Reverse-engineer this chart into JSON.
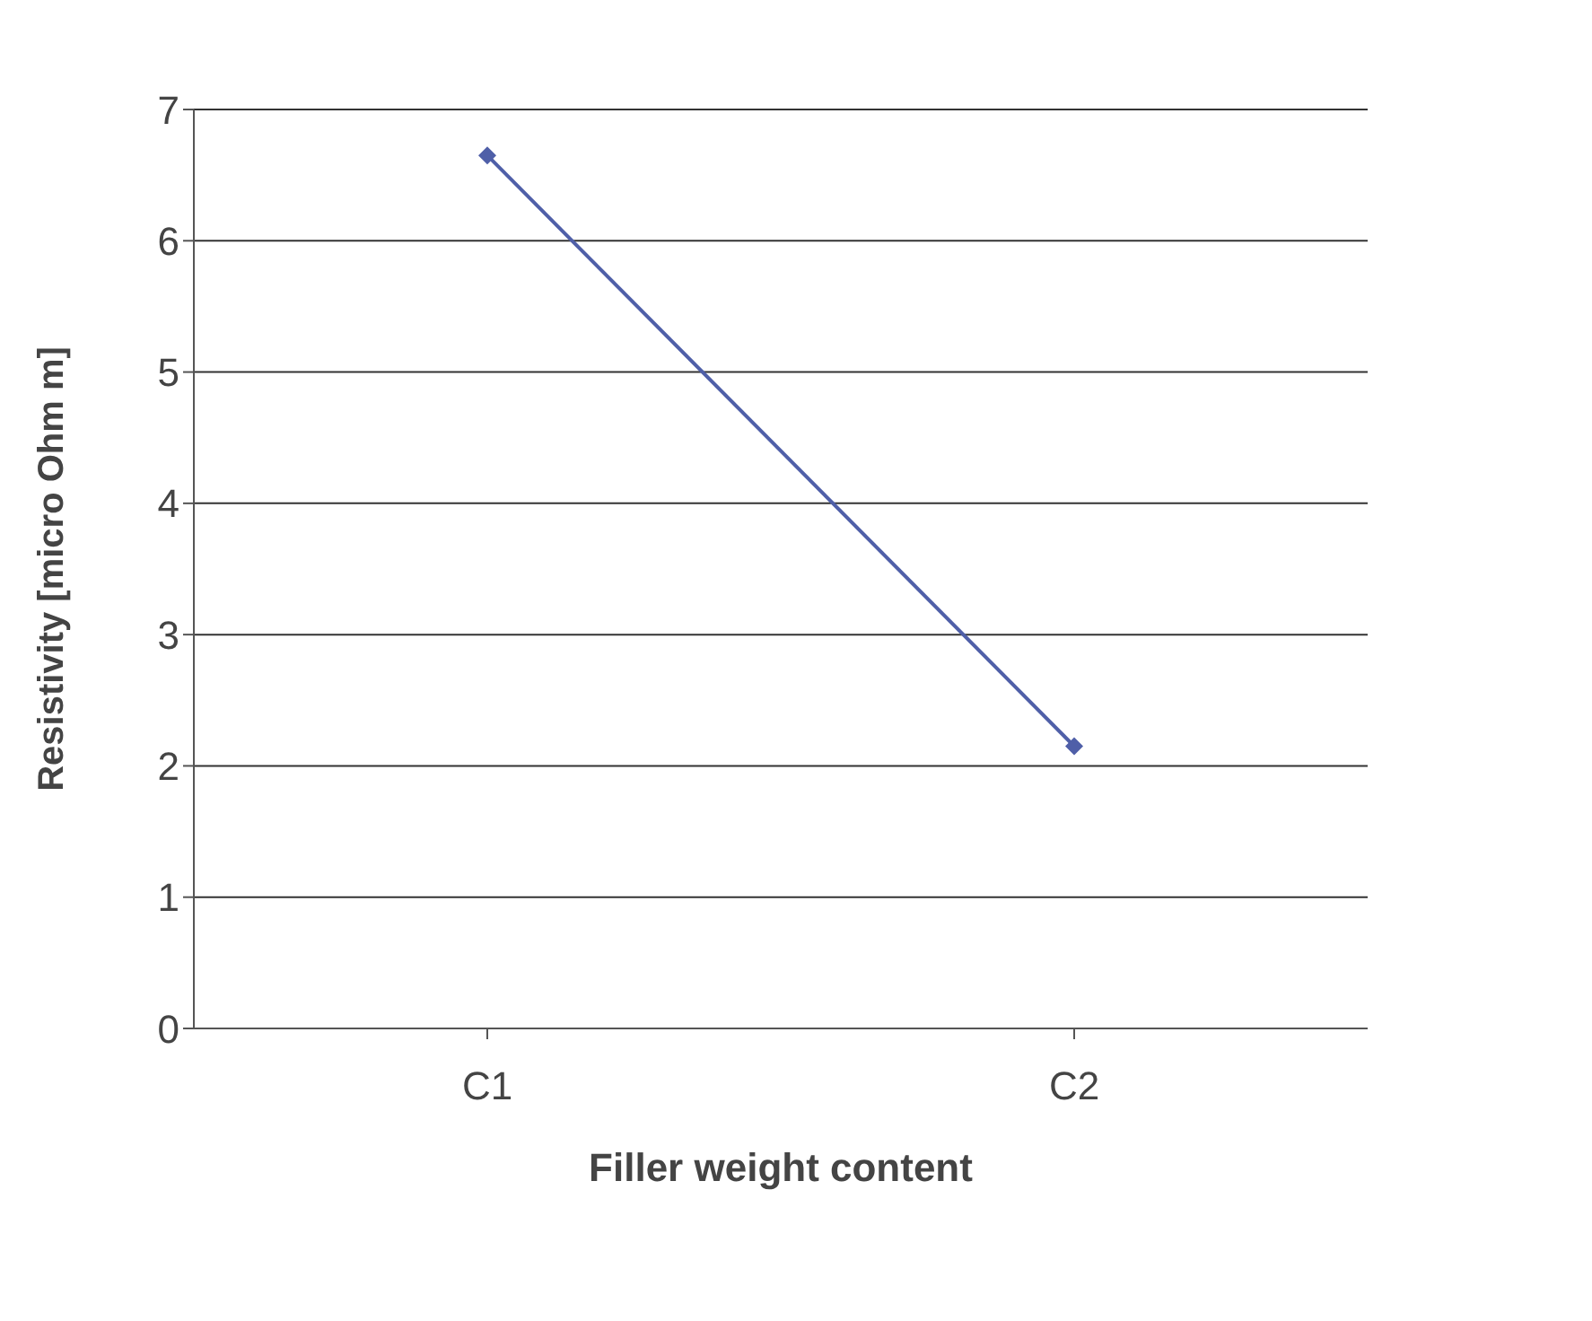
{
  "chart_data": {
    "type": "line",
    "xlabel": "Filler weight content",
    "ylabel": "Resistivity [micro Ohm m]",
    "categories": [
      "C1",
      "C2"
    ],
    "series": [
      {
        "color": "#4f5fa8",
        "values": [
          6.65,
          2.15
        ]
      }
    ],
    "ylim": [
      0,
      7
    ],
    "yticks": [
      0,
      1,
      2,
      3,
      4,
      5,
      6,
      7
    ],
    "grid": "y",
    "legend": false,
    "marker": "diamond",
    "line_style": "solid"
  }
}
